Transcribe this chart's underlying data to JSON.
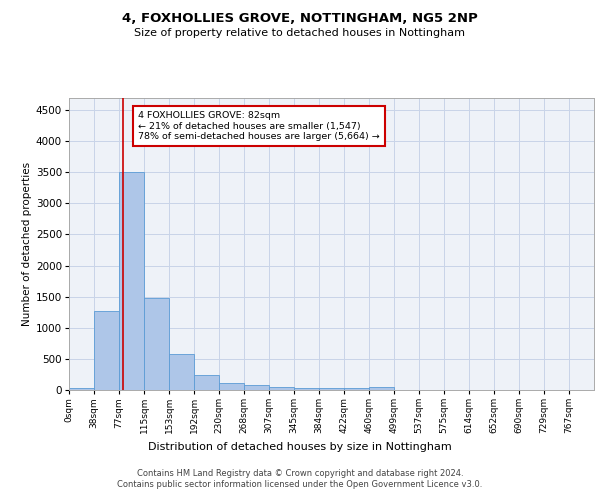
{
  "title": "4, FOXHOLLIES GROVE, NOTTINGHAM, NG5 2NP",
  "subtitle": "Size of property relative to detached houses in Nottingham",
  "xlabel": "Distribution of detached houses by size in Nottingham",
  "ylabel": "Number of detached properties",
  "bar_labels": [
    "0sqm",
    "38sqm",
    "77sqm",
    "115sqm",
    "153sqm",
    "192sqm",
    "230sqm",
    "268sqm",
    "307sqm",
    "345sqm",
    "384sqm",
    "422sqm",
    "460sqm",
    "499sqm",
    "537sqm",
    "575sqm",
    "614sqm",
    "652sqm",
    "690sqm",
    "729sqm",
    "767sqm"
  ],
  "bar_values": [
    30,
    1270,
    3500,
    1480,
    580,
    240,
    120,
    85,
    55,
    40,
    30,
    25,
    50,
    5,
    0,
    0,
    0,
    0,
    0,
    0,
    0
  ],
  "bar_color": "#aec6e8",
  "bar_edge_color": "#5b9bd5",
  "grid_color": "#c8d4e8",
  "background_color": "#eef2f8",
  "property_line_color": "#cc0000",
  "annotation_box_text": "4 FOXHOLLIES GROVE: 82sqm\n← 21% of detached houses are smaller (1,547)\n78% of semi-detached houses are larger (5,664) →",
  "annotation_box_edge_color": "#cc0000",
  "ylim": [
    0,
    4700
  ],
  "yticks": [
    0,
    500,
    1000,
    1500,
    2000,
    2500,
    3000,
    3500,
    4000,
    4500
  ],
  "footer_line1": "Contains HM Land Registry data © Crown copyright and database right 2024.",
  "footer_line2": "Contains public sector information licensed under the Open Government Licence v3.0.",
  "bin_width": 38,
  "property_sqm": 82
}
